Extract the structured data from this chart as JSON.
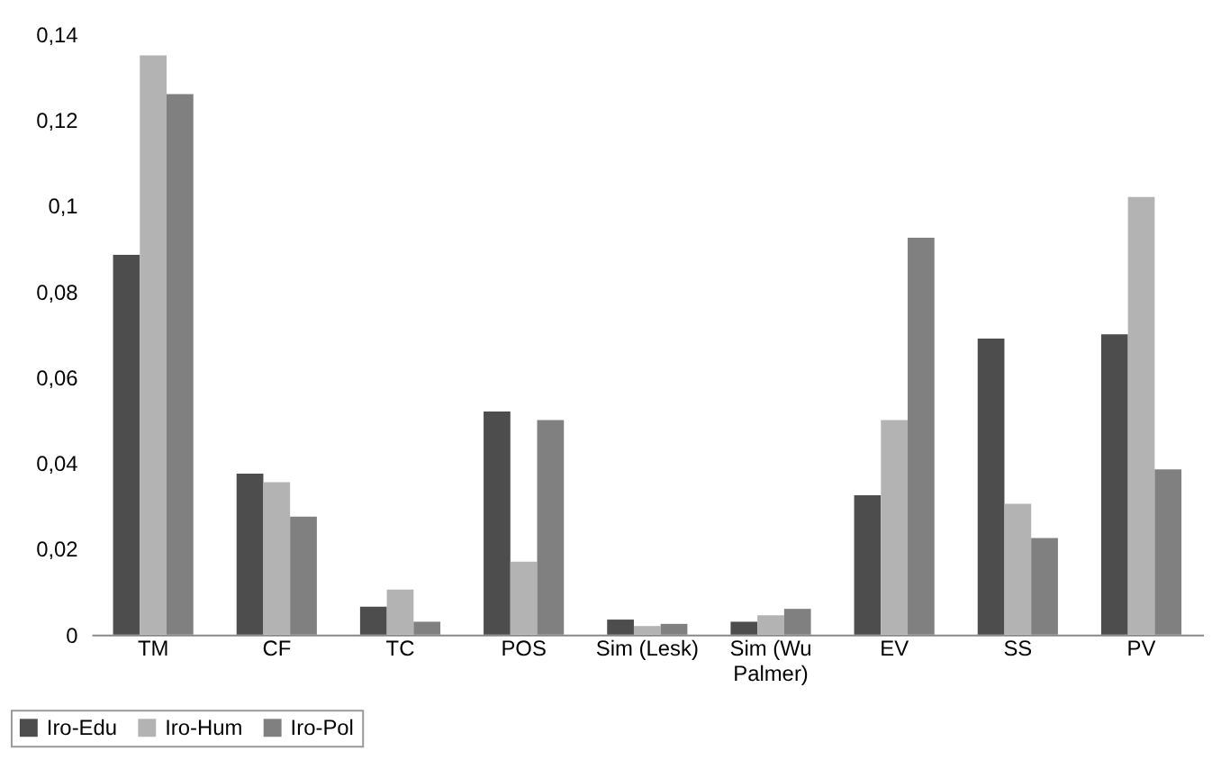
{
  "chart_data": {
    "type": "bar",
    "categories": [
      "TM",
      "CF",
      "TC",
      "POS",
      "Sim (Lesk)",
      "Sim (Wu Palmer)",
      "EV",
      "SS",
      "PV"
    ],
    "series": [
      {
        "name": "Iro-Edu",
        "color": "#4d4d4d",
        "values": [
          0.0885,
          0.0375,
          0.0065,
          0.052,
          0.0035,
          0.003,
          0.0325,
          0.069,
          0.07
        ]
      },
      {
        "name": "Iro-Hum",
        "color": "#b3b3b3",
        "values": [
          0.135,
          0.0355,
          0.0105,
          0.017,
          0.002,
          0.0045,
          0.05,
          0.0305,
          0.102
        ]
      },
      {
        "name": "Iro-Pol",
        "color": "#808080",
        "values": [
          0.126,
          0.0275,
          0.003,
          0.05,
          0.0025,
          0.006,
          0.0925,
          0.0225,
          0.0385
        ]
      }
    ],
    "ylim": [
      0,
      0.14
    ],
    "yticks": [
      {
        "value": 0,
        "label": "0"
      },
      {
        "value": 0.02,
        "label": "0,02"
      },
      {
        "value": 0.04,
        "label": "0,04"
      },
      {
        "value": 0.06,
        "label": "0,06"
      },
      {
        "value": 0.08,
        "label": "0,08"
      },
      {
        "value": 0.1,
        "label": "0,1"
      },
      {
        "value": 0.12,
        "label": "0,12"
      },
      {
        "value": 0.14,
        "label": "0,14"
      }
    ],
    "grid": false,
    "legend": "bottom left"
  }
}
